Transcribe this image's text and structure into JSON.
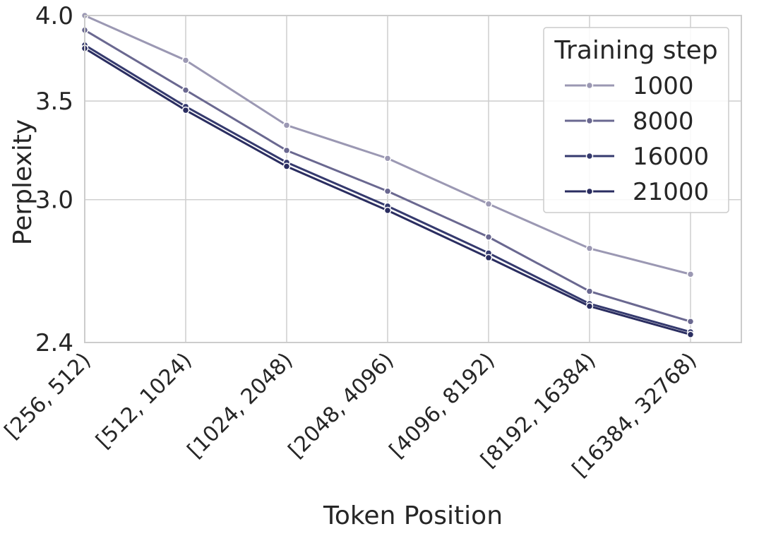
{
  "chart_data": {
    "type": "line",
    "xlabel": "Token Position",
    "ylabel": "Perplexity",
    "y_scale": "log",
    "ylim": [
      2.4,
      4.0
    ],
    "y_ticks": [
      2.4,
      3.0,
      3.5,
      4.0
    ],
    "y_tick_labels": [
      "2.4",
      "3.0",
      "3.5",
      "4.0"
    ],
    "grid": true,
    "legend_placement": "top-right",
    "legend_title": "Training step",
    "categories": [
      "[256, 512)",
      "[512, 1024)",
      "[1024, 2048)",
      "[2048, 4096)",
      "[4096, 8192)",
      "[8192, 16384)",
      "[16384, 32768)"
    ],
    "series": [
      {
        "name": "1000",
        "color": "#9b98b3",
        "values": [
          4.0,
          3.73,
          3.37,
          3.2,
          2.98,
          2.78,
          2.67
        ]
      },
      {
        "name": "8000",
        "color": "#6a6890",
        "values": [
          3.91,
          3.56,
          3.24,
          3.04,
          2.83,
          2.6,
          2.48
        ]
      },
      {
        "name": "16000",
        "color": "#353a6e",
        "values": [
          3.82,
          3.47,
          3.18,
          2.97,
          2.76,
          2.55,
          2.44
        ]
      },
      {
        "name": "21000",
        "color": "#2a2d60",
        "values": [
          3.8,
          3.45,
          3.16,
          2.95,
          2.74,
          2.54,
          2.43
        ]
      }
    ]
  }
}
